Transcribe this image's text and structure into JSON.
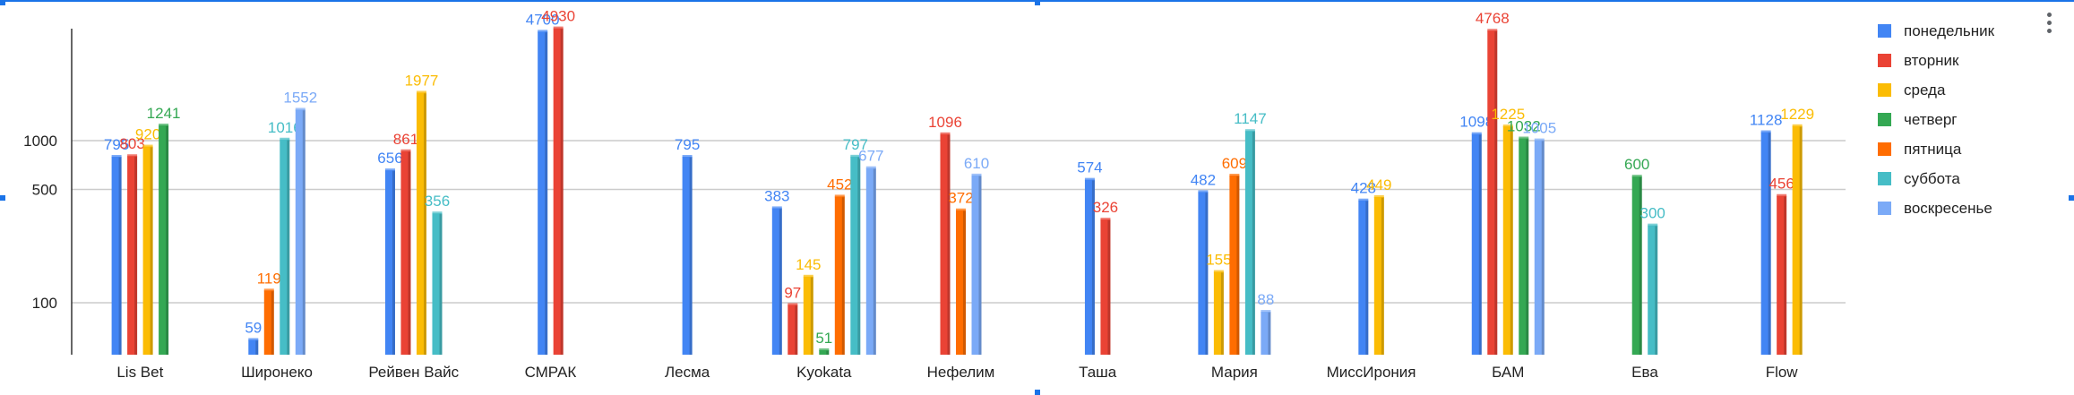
{
  "chart_data": {
    "type": "bar",
    "scale": "log",
    "grid": true,
    "legend_position": "right",
    "y_ticks": [
      100,
      500,
      1000
    ],
    "ylim": [
      55,
      5200
    ],
    "categories": [
      "Lis Bet",
      "Широнеко",
      "Рейвен Вайс",
      "СМРАК",
      "Лесма",
      "Kyokata",
      "Нефелим",
      "Таша",
      "Мария",
      "МиссИрония",
      "БАМ",
      "Ева",
      "Flow"
    ],
    "series": [
      {
        "name": "понедельник",
        "color": "#4285f4",
        "values": [
          795,
          59,
          656,
          4700,
          795,
          383,
          null,
          574,
          482,
          428,
          1098,
          null,
          1128
        ]
      },
      {
        "name": "вторник",
        "color": "#ea4335",
        "values": [
          803,
          null,
          861,
          4930,
          null,
          97,
          1096,
          326,
          null,
          null,
          4768,
          null,
          456
        ]
      },
      {
        "name": "среда",
        "color": "#fbbc04",
        "values": [
          920,
          null,
          1977,
          null,
          null,
          145,
          null,
          null,
          155,
          449,
          1225,
          null,
          1229
        ]
      },
      {
        "name": "четверг",
        "color": "#34a853",
        "values": [
          1241,
          null,
          null,
          null,
          null,
          51,
          null,
          null,
          null,
          null,
          1032,
          600,
          null
        ]
      },
      {
        "name": "пятница",
        "color": "#ff6d01",
        "values": [
          null,
          119,
          null,
          null,
          null,
          452,
          372,
          null,
          609,
          null,
          null,
          null,
          null
        ]
      },
      {
        "name": "суббота",
        "color": "#46bdc6",
        "values": [
          null,
          1016,
          356,
          null,
          null,
          797,
          null,
          null,
          1147,
          null,
          null,
          300,
          null
        ]
      },
      {
        "name": "воскресенье",
        "color": "#7baaf7",
        "values": [
          null,
          1552,
          null,
          null,
          null,
          677,
          610,
          null,
          88,
          null,
          1005,
          null,
          null
        ]
      }
    ],
    "value_labels": [
      [
        "795",
        "59",
        "656",
        "4700",
        "795",
        "383",
        null,
        "574",
        "482",
        "428",
        "1098",
        null,
        "1128"
      ],
      [
        "803",
        null,
        "861",
        "4930",
        null,
        "97",
        "1096",
        "326",
        null,
        null,
        "4768",
        null,
        "456"
      ],
      [
        "920",
        null,
        "1977",
        null,
        null,
        "145",
        null,
        null,
        "155",
        "449",
        "1225",
        null,
        "1229"
      ],
      [
        "1241",
        null,
        null,
        null,
        null,
        "51",
        null,
        null,
        null,
        null,
        "1032",
        "600",
        null
      ],
      [
        null,
        "119",
        null,
        null,
        null,
        "452",
        "372",
        null,
        "609",
        null,
        null,
        null,
        null
      ],
      [
        null,
        "1016",
        "356",
        null,
        null,
        "797",
        null,
        null,
        "1147",
        null,
        null,
        "300",
        null
      ],
      [
        null,
        "1552",
        null,
        null,
        null,
        "677",
        "610",
        null,
        "88",
        null,
        "1005",
        null,
        null
      ]
    ]
  }
}
